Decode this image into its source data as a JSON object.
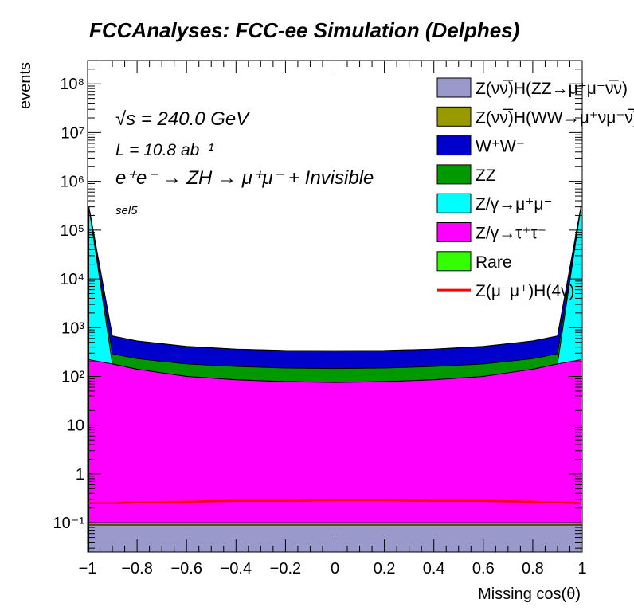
{
  "chart_data": {
    "type": "area",
    "title": "FCCAnalyses: FCC-ee Simulation (Delphes)",
    "xlabel": "Missing cos(θ)",
    "ylabel": "events",
    "xlim": [
      -1,
      1
    ],
    "ylim": [
      0.025,
      300000000
    ],
    "yscale": "log",
    "stacked": true,
    "annotations": {
      "energy": "√s = 240.0 GeV",
      "lumi": "L = 10.8 ab⁻¹",
      "process": "e⁺e⁻ → ZH → μ⁺μ⁻ + Invisible",
      "selection": "sel5"
    },
    "x_ticks": [
      "−1",
      "−0.8",
      "−0.6",
      "−0.4",
      "−0.2",
      "0",
      "0.2",
      "0.4",
      "0.6",
      "0.8",
      "1"
    ],
    "y_ticks": [
      "10⁻¹",
      "1",
      "10",
      "10²",
      "10³",
      "10⁴",
      "10⁵",
      "10⁶",
      "10⁷",
      "10⁸"
    ],
    "x": [
      -0.995,
      -0.9,
      -0.8,
      -0.6,
      -0.4,
      -0.2,
      0.0,
      0.2,
      0.4,
      0.6,
      0.8,
      0.9,
      0.995
    ],
    "series": [
      {
        "name": "Z(νν̅)H(ZZ→μ⁺μ⁻ν̅ν)",
        "color": "#9999cc",
        "values": [
          0.09,
          0.09,
          0.09,
          0.09,
          0.09,
          0.09,
          0.09,
          0.09,
          0.09,
          0.09,
          0.09,
          0.09,
          0.09
        ]
      },
      {
        "name": "Z(νν̅)H(WW→μ⁺νμ⁻ν̅)",
        "color": "#999900",
        "values": [
          0.01,
          0.01,
          0.01,
          0.01,
          0.01,
          0.01,
          0.01,
          0.01,
          0.01,
          0.01,
          0.01,
          0.01,
          0.01
        ]
      },
      {
        "name": "Z/γ→τ⁺τ⁻",
        "color": "#ff00ff",
        "values": [
          220,
          180,
          140,
          100,
          85,
          78,
          75,
          78,
          85,
          100,
          140,
          180,
          220
        ]
      },
      {
        "name": "Z/γ→μ⁺μ⁻",
        "color": "#00ffff",
        "values": [
          300000,
          1,
          0.3,
          0.1,
          0.1,
          0.1,
          0.1,
          0.1,
          0.1,
          0.1,
          0.3,
          1,
          300000
        ]
      },
      {
        "name": "ZZ",
        "color": "#009900",
        "values": [
          170,
          110,
          90,
          80,
          75,
          70,
          70,
          70,
          75,
          80,
          90,
          110,
          170
        ]
      },
      {
        "name": "W⁺W⁻",
        "color": "#0000cc",
        "values": [
          500,
          380,
          300,
          230,
          200,
          190,
          190,
          190,
          200,
          230,
          300,
          380,
          500
        ]
      },
      {
        "name": "Rare",
        "color": "#33ff00",
        "values": [
          3,
          3,
          3,
          3,
          3,
          3,
          3,
          3,
          3,
          3,
          3,
          3,
          3
        ]
      }
    ],
    "signal": {
      "name": "Z(μ⁻μ⁺)H(4ν)",
      "color": "#ff0000",
      "values": [
        0.25,
        0.25,
        0.26,
        0.27,
        0.28,
        0.28,
        0.29,
        0.29,
        0.28,
        0.28,
        0.27,
        0.26,
        0.25
      ]
    },
    "legend": {
      "position": "top-right",
      "entries": [
        {
          "label": "Z(νν̅)H(ZZ→μ⁺μ⁻ν̅ν)",
          "color": "#9999cc",
          "kind": "fill"
        },
        {
          "label": "Z(νν̅)H(WW→μ⁺νμ⁻ν̅)",
          "color": "#999900",
          "kind": "fill"
        },
        {
          "label": "W⁺W⁻",
          "color": "#0000cc",
          "kind": "fill"
        },
        {
          "label": "ZZ",
          "color": "#009900",
          "kind": "fill"
        },
        {
          "label": "Z/γ→μ⁺μ⁻",
          "color": "#00ffff",
          "kind": "fill"
        },
        {
          "label": "Z/γ→τ⁺τ⁻",
          "color": "#ff00ff",
          "kind": "fill"
        },
        {
          "label": "Rare",
          "color": "#33ff00",
          "kind": "fill"
        },
        {
          "label": "Z(μ⁻μ⁺)H(4ν)",
          "color": "#ff0000",
          "kind": "line"
        }
      ]
    }
  }
}
